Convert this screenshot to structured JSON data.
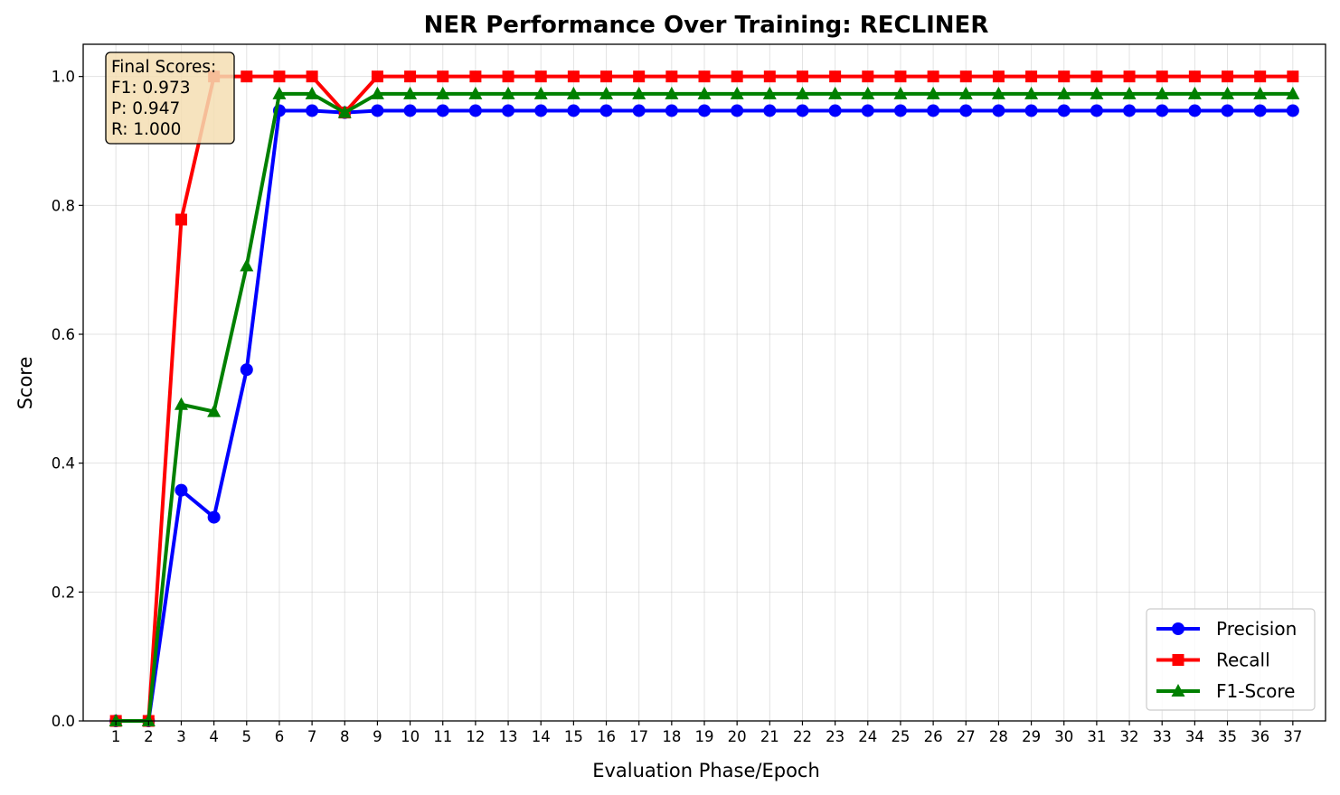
{
  "chart_data": {
    "type": "line",
    "title": "NER Performance Over Training: RECLINER",
    "xlabel": "Evaluation Phase/Epoch",
    "ylabel": "Score",
    "xlim": [
      0.0,
      38.0
    ],
    "ylim": [
      0.0,
      1.05
    ],
    "grid": true,
    "legend_position": "lower-right",
    "x": [
      1,
      2,
      3,
      4,
      5,
      6,
      7,
      8,
      9,
      10,
      11,
      12,
      13,
      14,
      15,
      16,
      17,
      18,
      19,
      20,
      21,
      22,
      23,
      24,
      25,
      26,
      27,
      28,
      29,
      30,
      31,
      32,
      33,
      34,
      35,
      36,
      37
    ],
    "x_tick_labels": [
      "1",
      "2",
      "3",
      "4",
      "5",
      "6",
      "7",
      "8",
      "9",
      "10",
      "11",
      "12",
      "13",
      "14",
      "15",
      "16",
      "17",
      "18",
      "19",
      "20",
      "21",
      "22",
      "23",
      "24",
      "25",
      "26",
      "27",
      "28",
      "29",
      "30",
      "31",
      "32",
      "33",
      "34",
      "35",
      "36",
      "37"
    ],
    "y_ticks": [
      0.0,
      0.2,
      0.4,
      0.6,
      0.8,
      1.0
    ],
    "y_tick_labels": [
      "0.0",
      "0.2",
      "0.4",
      "0.6",
      "0.8",
      "1.0"
    ],
    "series": [
      {
        "name": "Precision",
        "color": "#0000ff",
        "marker": "circle",
        "values": [
          0.0,
          0.0,
          0.358,
          0.316,
          0.545,
          0.947,
          0.947,
          0.944,
          0.947,
          0.947,
          0.947,
          0.947,
          0.947,
          0.947,
          0.947,
          0.947,
          0.947,
          0.947,
          0.947,
          0.947,
          0.947,
          0.947,
          0.947,
          0.947,
          0.947,
          0.947,
          0.947,
          0.947,
          0.947,
          0.947,
          0.947,
          0.947,
          0.947,
          0.947,
          0.947,
          0.947,
          0.947
        ]
      },
      {
        "name": "Recall",
        "color": "#ff0000",
        "marker": "square",
        "values": [
          0.0,
          0.0,
          0.778,
          1.0,
          1.0,
          1.0,
          1.0,
          0.944,
          1.0,
          1.0,
          1.0,
          1.0,
          1.0,
          1.0,
          1.0,
          1.0,
          1.0,
          1.0,
          1.0,
          1.0,
          1.0,
          1.0,
          1.0,
          1.0,
          1.0,
          1.0,
          1.0,
          1.0,
          1.0,
          1.0,
          1.0,
          1.0,
          1.0,
          1.0,
          1.0,
          1.0,
          1.0
        ]
      },
      {
        "name": "F1-Score",
        "color": "#008000",
        "marker": "triangle",
        "values": [
          0.0,
          0.0,
          0.491,
          0.48,
          0.706,
          0.973,
          0.973,
          0.944,
          0.973,
          0.973,
          0.973,
          0.973,
          0.973,
          0.973,
          0.973,
          0.973,
          0.973,
          0.973,
          0.973,
          0.973,
          0.973,
          0.973,
          0.973,
          0.973,
          0.973,
          0.973,
          0.973,
          0.973,
          0.973,
          0.973,
          0.973,
          0.973,
          0.973,
          0.973,
          0.973,
          0.973,
          0.973
        ]
      }
    ],
    "annotation": {
      "lines": [
        "Final Scores:",
        "F1: 0.973",
        "P: 0.947",
        "R: 1.000"
      ],
      "background": "#f5deb3"
    }
  }
}
